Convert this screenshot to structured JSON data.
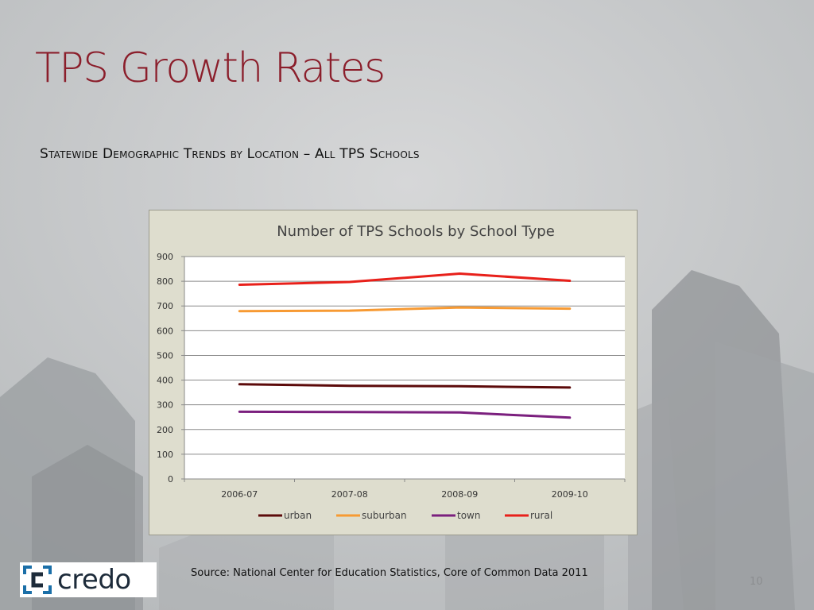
{
  "slide": {
    "title": "TPS Growth Rates",
    "subtitle": "Statewide Demographic Trends by Location – All TPS Schools",
    "source": "Source:  National Center for Education Statistics, Core of Common Data 2011",
    "page_number": "10",
    "logo_text": "credo",
    "accent_color": "#8b1e2b"
  },
  "chart_data": {
    "type": "line",
    "title": "Number of TPS Schools by School Type",
    "categories": [
      "2006-07",
      "2007-08",
      "2008-09",
      "2009-10"
    ],
    "series": [
      {
        "name": "urban",
        "color": "#5c0a0a",
        "values": [
          383,
          377,
          375,
          370
        ]
      },
      {
        "name": "suburban",
        "color": "#f79a33",
        "values": [
          679,
          681,
          694,
          689
        ]
      },
      {
        "name": "town",
        "color": "#7b1f7e",
        "values": [
          272,
          271,
          269,
          248
        ]
      },
      {
        "name": "rural",
        "color": "#e8201a",
        "values": [
          786,
          797,
          831,
          802
        ]
      }
    ],
    "ylim": [
      0,
      900
    ],
    "yticks": [
      0,
      100,
      200,
      300,
      400,
      500,
      600,
      700,
      800,
      900
    ],
    "xlabel": "",
    "ylabel": "",
    "grid": true,
    "legend": "bottom"
  }
}
